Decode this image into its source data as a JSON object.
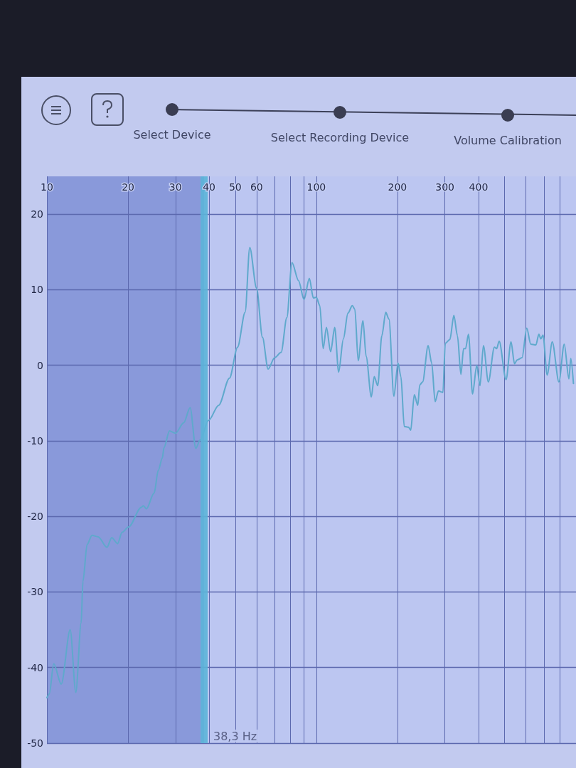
{
  "chart_data": {
    "type": "line",
    "annotations": [
      "Select Device",
      "Select Recording Device",
      "Volume Calibration"
    ],
    "x": [
      10,
      10.2,
      10.6,
      11.3,
      12.2,
      12.8,
      13.4,
      13.6,
      14.1,
      14.7,
      15.5,
      16.7,
      17.4,
      18.3,
      19,
      20.1,
      22.4,
      22.8,
      23.4,
      25,
      25.9,
      26.8,
      27.2,
      28.5,
      30,
      32.2,
      34,
      35.7,
      37,
      39.8,
      43.4,
      47.6,
      51,
      54.4,
      56.6,
      60,
      63.1,
      66.2,
      70,
      74,
      77.7,
      81.2,
      85.9,
      90,
      94.2,
      97.5,
      100,
      103,
      106,
      109,
      113,
      117,
      121,
      126,
      131,
      136,
      139,
      143,
      149,
      153,
      160,
      164,
      169,
      175,
      181,
      186,
      194,
      201,
      206,
      212,
      220,
      224,
      231,
      238,
      242,
      248,
      260,
      268,
      276,
      284,
      295,
      301,
      313,
      324,
      334,
      344,
      352,
      358,
      367,
      380,
      394,
      405,
      417,
      435,
      458,
      467,
      477,
      506,
      528,
      544,
      556,
      580,
      604,
      625,
      653,
      670,
      681,
      694,
      719,
      751,
      795,
      832,
      866,
      880,
      900
    ],
    "values": [
      -44,
      -43.5,
      -39.5,
      -42.2,
      -35,
      -43.3,
      -34.1,
      -28.6,
      -23.7,
      -22.5,
      -22.7,
      -24.1,
      -22.8,
      -23.6,
      -22.1,
      -21.4,
      -18.8,
      -18.6,
      -19,
      -16.9,
      -13.9,
      -12.3,
      -10.9,
      -8.7,
      -9,
      -7.6,
      -5.6,
      -11,
      -9.9,
      -7.3,
      -5.3,
      -1.7,
      2.4,
      7,
      15.6,
      10.2,
      3.7,
      -0.5,
      1,
      1.7,
      6.3,
      13.6,
      11.2,
      8.7,
      11.5,
      8.9,
      9,
      7.9,
      2.2,
      5,
      1.8,
      5,
      -0.9,
      3.5,
      6.9,
      7.9,
      7.4,
      0.6,
      5.9,
      1.2,
      -4.2,
      -1.5,
      -2.7,
      3.9,
      7,
      6.1,
      -4.1,
      0.3,
      -1.5,
      -8.1,
      -8.2,
      -8.6,
      -3.9,
      -5.3,
      -2.6,
      -2.2,
      2.6,
      0.3,
      -4.8,
      -3.4,
      -3.6,
      2.9,
      3.4,
      6.6,
      3.9,
      -1.2,
      2.2,
      2.2,
      4.1,
      -3.8,
      0,
      -2.7,
      2.6,
      -2.2,
      2.4,
      2.2,
      3.2,
      -1.9,
      3.1,
      0.2,
      0.7,
      1,
      4.9,
      2.8,
      2.7,
      4.1,
      3.5,
      4,
      -1.3,
      3.1,
      -2.2,
      2.8,
      -1.8,
      0.9,
      -2.4
    ],
    "color": "#5fa9cc",
    "marker": "none",
    "line_style": "solid",
    "log": "x",
    "grid": true,
    "xlim": [
      10,
      920
    ],
    "xticks": [
      10,
      20,
      30,
      40,
      50,
      60,
      {
        "value": 70,
        "label": null
      },
      {
        "value": 80,
        "label": null
      },
      {
        "value": 90,
        "label": null
      },
      100,
      200,
      300,
      400,
      {
        "value": 500,
        "label": null
      },
      {
        "value": 600,
        "label": null
      },
      {
        "value": 700,
        "label": null
      },
      {
        "value": 800,
        "label": null
      }
    ],
    "ylim": [
      -50,
      25
    ],
    "yticks": [
      -50,
      -40,
      -30,
      -20,
      -10,
      0,
      10,
      20
    ],
    "bands": [
      {
        "axis": "x",
        "from": 10,
        "to": 38.3,
        "color": "#8090d6"
      }
    ],
    "ref_lines": [
      {
        "axis": "x",
        "value": 38.3,
        "label": "38,3 Hz",
        "color": "#5cb4d8"
      }
    ]
  }
}
